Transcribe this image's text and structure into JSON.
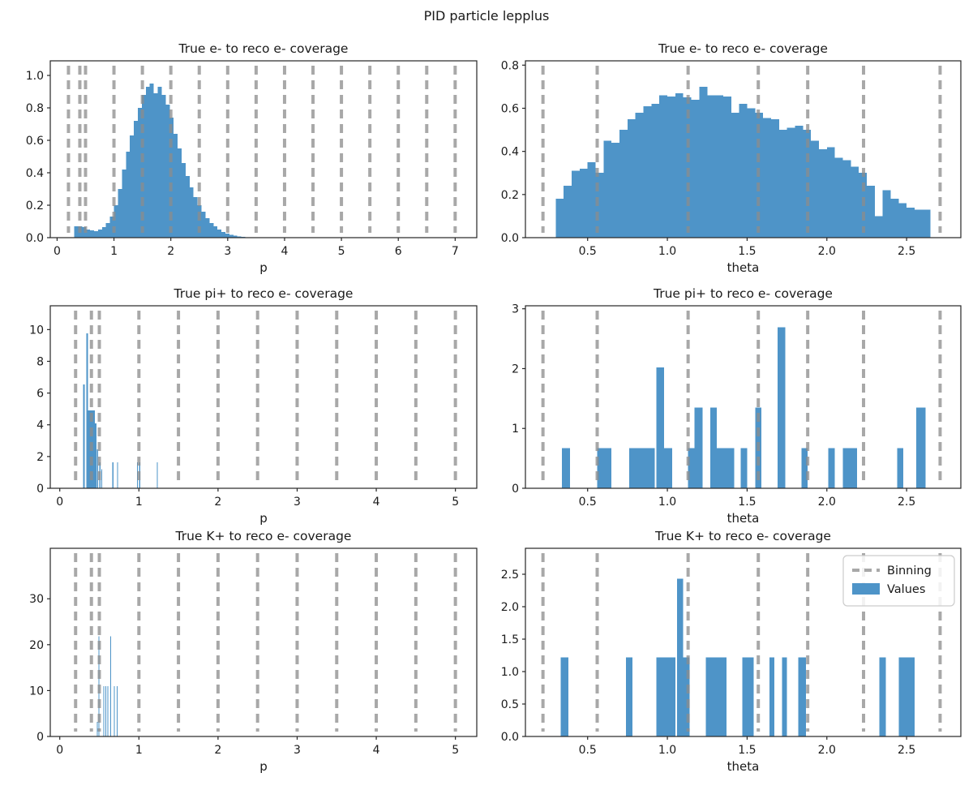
{
  "figure": {
    "suptitle": "PID particle lepplus",
    "colors": {
      "bar": "#4e94c8",
      "binning": "#8c8c8c",
      "spine": "#262626",
      "text": "#1a1a1a",
      "legend_border": "#cccccc"
    },
    "legend": {
      "items": [
        {
          "label": "Binning",
          "type": "dashed-line"
        },
        {
          "label": "Values",
          "type": "patch"
        }
      ]
    }
  },
  "chart_data": [
    {
      "type": "bar",
      "title": "True e- to reco e- coverage",
      "xlabel": "p",
      "xlim": [
        -0.12,
        7.38
      ],
      "ylim": [
        0,
        1.09
      ],
      "xticks": [
        0,
        1,
        2,
        3,
        4,
        5,
        6,
        7
      ],
      "xtick_labels": [
        "0",
        "1",
        "2",
        "3",
        "4",
        "5",
        "6",
        "7"
      ],
      "yticks": [
        0,
        0.2,
        0.4,
        0.6,
        0.8,
        1.0
      ],
      "ytick_labels": [
        "0.0",
        "0.2",
        "0.4",
        "0.6",
        "0.8",
        "1.0"
      ],
      "binning": [
        0.2,
        0.4,
        0.5,
        1.0,
        1.5,
        2.0,
        2.5,
        3.0,
        3.5,
        4.0,
        4.5,
        5.0,
        5.5,
        6.0,
        6.5,
        7.0
      ],
      "hist": {
        "start": 0.3,
        "bin_width": 0.07,
        "values": [
          0.07,
          0.07,
          0.065,
          0.05,
          0.045,
          0.04,
          0.05,
          0.065,
          0.09,
          0.13,
          0.2,
          0.3,
          0.42,
          0.53,
          0.63,
          0.72,
          0.8,
          0.88,
          0.93,
          0.95,
          0.89,
          0.93,
          0.88,
          0.82,
          0.74,
          0.64,
          0.55,
          0.46,
          0.38,
          0.31,
          0.25,
          0.2,
          0.16,
          0.12,
          0.09,
          0.07,
          0.05,
          0.035,
          0.025,
          0.018,
          0.012,
          0.008,
          0.005,
          0.003
        ]
      },
      "legend": false
    },
    {
      "type": "bar",
      "title": "True e- to reco e- coverage",
      "xlabel": "theta",
      "xlim": [
        0.11,
        2.84
      ],
      "ylim": [
        0,
        0.82
      ],
      "xticks": [
        0.5,
        1.0,
        1.5,
        2.0,
        2.5
      ],
      "xtick_labels": [
        "0.5",
        "1.0",
        "1.5",
        "2.0",
        "2.5"
      ],
      "yticks": [
        0,
        0.2,
        0.4,
        0.6,
        0.8
      ],
      "ytick_labels": [
        "0.0",
        "0.2",
        "0.4",
        "0.6",
        "0.8"
      ],
      "binning": [
        0.22,
        0.56,
        1.13,
        1.57,
        1.88,
        2.23,
        2.71
      ],
      "hist": {
        "start": 0.3,
        "bin_width": 0.05,
        "values": [
          0.18,
          0.24,
          0.31,
          0.32,
          0.35,
          0.3,
          0.45,
          0.44,
          0.5,
          0.55,
          0.58,
          0.61,
          0.62,
          0.66,
          0.655,
          0.67,
          0.65,
          0.64,
          0.7,
          0.66,
          0.66,
          0.655,
          0.58,
          0.62,
          0.6,
          0.58,
          0.555,
          0.55,
          0.5,
          0.51,
          0.52,
          0.5,
          0.45,
          0.41,
          0.42,
          0.37,
          0.36,
          0.33,
          0.3,
          0.24,
          0.1,
          0.22,
          0.18,
          0.16,
          0.14,
          0.13,
          0.13
        ]
      },
      "legend": false
    },
    {
      "type": "bar",
      "title": "True pi+ to reco e- coverage",
      "xlabel": "p",
      "xlim": [
        -0.12,
        5.27
      ],
      "ylim": [
        0,
        11.5
      ],
      "xticks": [
        0,
        1,
        2,
        3,
        4,
        5
      ],
      "xtick_labels": [
        "0",
        "1",
        "2",
        "3",
        "4",
        "5"
      ],
      "yticks": [
        0,
        2,
        4,
        6,
        8,
        10
      ],
      "ytick_labels": [
        "0",
        "2",
        "4",
        "6",
        "8",
        "10"
      ],
      "binning": [
        0.2,
        0.4,
        0.5,
        1.0,
        1.5,
        2.0,
        2.5,
        3.0,
        3.5,
        4.0,
        4.5,
        5.0
      ],
      "bars": [
        [
          0.295,
          0.315,
          6.55
        ],
        [
          0.335,
          0.445,
          4.9
        ],
        [
          0.335,
          0.355,
          9.75
        ],
        [
          0.445,
          0.462,
          4.1
        ],
        [
          0.468,
          0.482,
          2.45
        ],
        [
          0.5,
          0.513,
          1.63
        ],
        [
          0.525,
          0.538,
          1.2
        ],
        [
          0.665,
          0.678,
          1.63
        ],
        [
          0.725,
          0.738,
          1.63
        ],
        [
          0.975,
          0.988,
          1.63
        ],
        [
          1.002,
          1.015,
          1.63
        ],
        [
          1.225,
          1.238,
          1.63
        ]
      ],
      "legend": false
    },
    {
      "type": "bar",
      "title": "True pi+ to reco e- coverage",
      "xlabel": "theta",
      "xlim": [
        0.11,
        2.84
      ],
      "ylim": [
        0,
        3.05
      ],
      "xticks": [
        0.5,
        1.0,
        1.5,
        2.0,
        2.5
      ],
      "xtick_labels": [
        "0.5",
        "1.0",
        "1.5",
        "2.0",
        "2.5"
      ],
      "yticks": [
        0,
        1,
        2,
        3
      ],
      "ytick_labels": [
        "0",
        "1",
        "2",
        "3"
      ],
      "binning": [
        0.22,
        0.56,
        1.13,
        1.57,
        1.88,
        2.23,
        2.71
      ],
      "bars": [
        [
          0.34,
          0.39,
          0.67
        ],
        [
          0.56,
          0.65,
          0.67
        ],
        [
          0.76,
          0.92,
          0.67
        ],
        [
          0.93,
          0.98,
          2.02
        ],
        [
          0.98,
          1.03,
          0.67
        ],
        [
          1.13,
          1.17,
          0.67
        ],
        [
          1.17,
          1.22,
          1.35
        ],
        [
          1.27,
          1.31,
          1.35
        ],
        [
          1.31,
          1.42,
          0.67
        ],
        [
          1.46,
          1.5,
          0.67
        ],
        [
          1.55,
          1.59,
          1.35
        ],
        [
          1.69,
          1.74,
          2.69
        ],
        [
          1.84,
          1.88,
          0.67
        ],
        [
          2.01,
          2.05,
          0.67
        ],
        [
          2.1,
          2.19,
          0.67
        ],
        [
          2.44,
          2.48,
          0.67
        ],
        [
          2.56,
          2.62,
          1.35
        ]
      ],
      "legend": false
    },
    {
      "type": "bar",
      "title": "True K+ to reco e- coverage",
      "xlabel": "p",
      "xlim": [
        -0.12,
        5.27
      ],
      "ylim": [
        0,
        41
      ],
      "xticks": [
        0,
        1,
        2,
        3,
        4,
        5
      ],
      "xtick_labels": [
        "0",
        "1",
        "2",
        "3",
        "4",
        "5"
      ],
      "yticks": [
        0,
        10,
        20,
        30
      ],
      "ytick_labels": [
        "0",
        "10",
        "20",
        "30"
      ],
      "binning": [
        0.2,
        0.4,
        0.5,
        1.0,
        1.5,
        2.0,
        2.5,
        3.0,
        3.5,
        4.0,
        4.5,
        5.0
      ],
      "bars": [
        [
          0.468,
          0.478,
          3.2
        ],
        [
          0.49,
          0.502,
          21.8
        ],
        [
          0.553,
          0.563,
          11.0
        ],
        [
          0.578,
          0.588,
          11.0
        ],
        [
          0.603,
          0.613,
          11.0
        ],
        [
          0.638,
          0.65,
          21.8
        ],
        [
          0.682,
          0.692,
          11.0
        ],
        [
          0.718,
          0.728,
          11.0
        ]
      ],
      "legend": false
    },
    {
      "type": "bar",
      "title": "True K+ to reco e- coverage",
      "xlabel": "theta",
      "xlim": [
        0.11,
        2.84
      ],
      "ylim": [
        0,
        2.9
      ],
      "xticks": [
        0.5,
        1.0,
        1.5,
        2.0,
        2.5
      ],
      "xtick_labels": [
        "0.5",
        "1.0",
        "1.5",
        "2.0",
        "2.5"
      ],
      "yticks": [
        0,
        0.5,
        1.0,
        1.5,
        2.0,
        2.5
      ],
      "ytick_labels": [
        "0.0",
        "0.5",
        "1.0",
        "1.5",
        "2.0",
        "2.5"
      ],
      "binning": [
        0.22,
        0.56,
        1.13,
        1.57,
        1.88,
        2.23,
        2.71
      ],
      "bars": [
        [
          0.33,
          0.38,
          1.22
        ],
        [
          0.74,
          0.78,
          1.22
        ],
        [
          0.93,
          1.05,
          1.22
        ],
        [
          1.06,
          1.1,
          2.43
        ],
        [
          1.1,
          1.14,
          1.22
        ],
        [
          1.24,
          1.37,
          1.22
        ],
        [
          1.47,
          1.54,
          1.22
        ],
        [
          1.64,
          1.67,
          1.22
        ],
        [
          1.72,
          1.75,
          1.22
        ],
        [
          1.82,
          1.87,
          1.22
        ],
        [
          2.33,
          2.37,
          1.22
        ],
        [
          2.45,
          2.55,
          1.22
        ]
      ],
      "legend": true
    }
  ]
}
